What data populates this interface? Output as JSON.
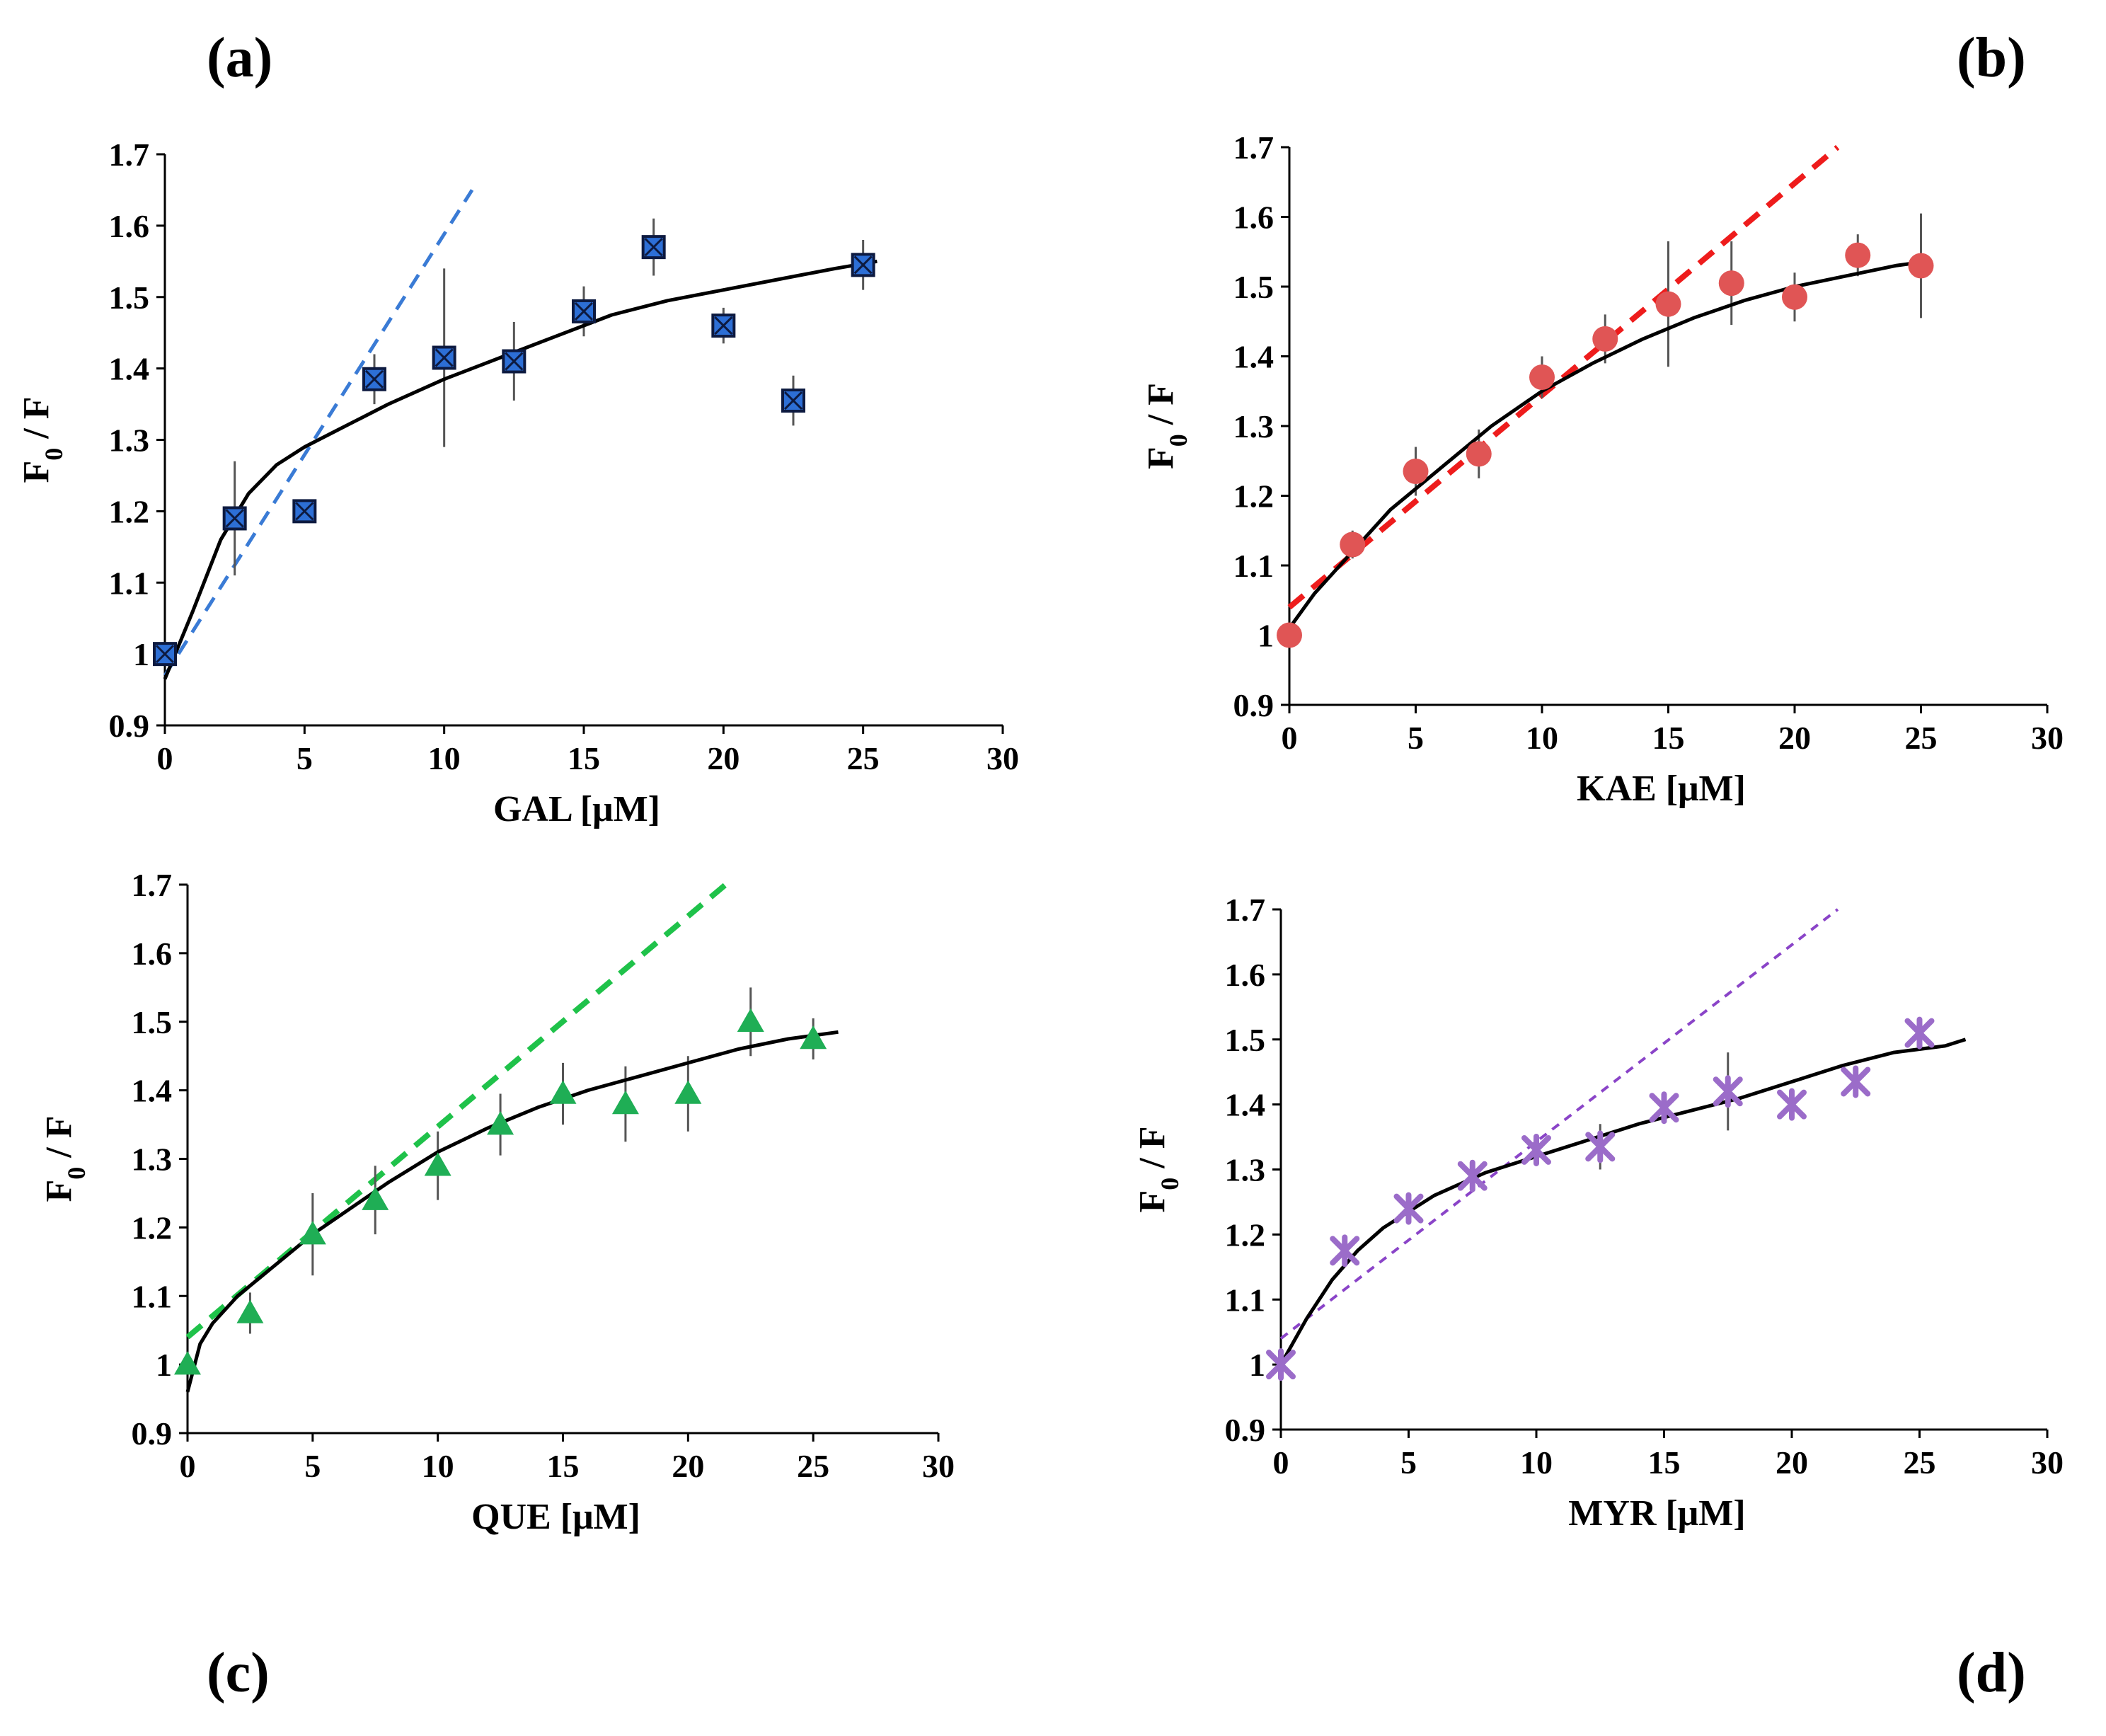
{
  "panels": {
    "a": {
      "label": "(a)"
    },
    "b": {
      "label": "(b)"
    },
    "c": {
      "label": "(c)"
    },
    "d": {
      "label": "(d)"
    }
  },
  "colors": {
    "fit_curve": "#000000",
    "error_bar": "#555555",
    "gal": "#1f4e9c",
    "gal_line": "#3a7bd5",
    "kae": "#e05555",
    "kae_line": "#ee1c1c",
    "que": "#1fae55",
    "que_line": "#1fc24a",
    "myr": "#9b6cc9",
    "myr_line": "#8a44c8"
  },
  "chart_data": [
    {
      "id": "a",
      "type": "scatter",
      "title": "(a)",
      "xlabel": "GAL [μM]",
      "ylabel": "F0 / F",
      "ylabel_main": "F",
      "ylabel_sub": "0",
      "ylabel_rest": " / F",
      "xlim": [
        0,
        30
      ],
      "ylim": [
        0.9,
        1.7
      ],
      "xticks": [
        0,
        5,
        10,
        15,
        20,
        25,
        30
      ],
      "yticks": [
        0.9,
        1,
        1.1,
        1.2,
        1.3,
        1.4,
        1.5,
        1.6,
        1.7
      ],
      "marker": "square-x",
      "series": [
        {
          "name": "GAL",
          "x": [
            0,
            2.5,
            5,
            7.5,
            10,
            12.5,
            15,
            17.5,
            20,
            22.5,
            25
          ],
          "y": [
            1.0,
            1.19,
            1.2,
            1.385,
            1.415,
            1.41,
            1.48,
            1.57,
            1.46,
            1.355,
            1.545
          ],
          "err": [
            0.0,
            0.08,
            0.0,
            0.035,
            0.125,
            0.055,
            0.035,
            0.04,
            0.025,
            0.035,
            0.035
          ]
        }
      ],
      "fit_curve": {
        "x": [
          0,
          1,
          2,
          3,
          4,
          5,
          6,
          8,
          10,
          12,
          14,
          16,
          18,
          20,
          22,
          24,
          25.5
        ],
        "y": [
          0.965,
          1.06,
          1.16,
          1.225,
          1.265,
          1.29,
          1.31,
          1.35,
          1.385,
          1.415,
          1.445,
          1.475,
          1.495,
          1.51,
          1.525,
          1.54,
          1.55
        ]
      },
      "linear_fit": {
        "x": [
          0,
          11
        ],
        "y": [
          0.97,
          1.65
        ]
      }
    },
    {
      "id": "b",
      "type": "scatter",
      "title": "(b)",
      "xlabel": "KAE [μM]",
      "ylabel": "F0 / F",
      "ylabel_main": "F",
      "ylabel_sub": "0",
      "ylabel_rest": " / F",
      "xlim": [
        0,
        30
      ],
      "ylim": [
        0.9,
        1.7
      ],
      "xticks": [
        0,
        5,
        10,
        15,
        20,
        25,
        30
      ],
      "yticks": [
        0.9,
        1,
        1.1,
        1.2,
        1.3,
        1.4,
        1.5,
        1.6,
        1.7
      ],
      "marker": "circle",
      "series": [
        {
          "name": "KAE",
          "x": [
            0,
            2.5,
            5,
            7.5,
            10,
            12.5,
            15,
            17.5,
            20,
            22.5,
            25
          ],
          "y": [
            1.0,
            1.13,
            1.235,
            1.26,
            1.37,
            1.425,
            1.475,
            1.505,
            1.485,
            1.545,
            1.53
          ],
          "err": [
            0.0,
            0.02,
            0.035,
            0.035,
            0.03,
            0.035,
            0.09,
            0.06,
            0.035,
            0.03,
            0.075
          ]
        }
      ],
      "fit_curve": {
        "x": [
          0,
          1,
          2,
          3,
          4,
          5,
          6,
          8,
          10,
          12,
          14,
          16,
          18,
          20,
          22,
          24,
          25
        ],
        "y": [
          1.01,
          1.06,
          1.1,
          1.14,
          1.18,
          1.21,
          1.24,
          1.3,
          1.35,
          1.39,
          1.425,
          1.455,
          1.48,
          1.5,
          1.515,
          1.53,
          1.535
        ]
      },
      "linear_fit": {
        "x": [
          0,
          21.7
        ],
        "y": [
          1.04,
          1.7
        ]
      }
    },
    {
      "id": "c",
      "type": "scatter",
      "title": "(c)",
      "xlabel": "QUE [μM]",
      "ylabel": "F0 / F",
      "ylabel_main": "F",
      "ylabel_sub": "0",
      "ylabel_rest": " / F",
      "xlim": [
        0,
        30
      ],
      "ylim": [
        0.9,
        1.7
      ],
      "xticks": [
        0,
        5,
        10,
        15,
        20,
        25,
        30
      ],
      "yticks": [
        0.9,
        1,
        1.1,
        1.2,
        1.3,
        1.4,
        1.5,
        1.6,
        1.7
      ],
      "marker": "triangle",
      "series": [
        {
          "name": "QUE",
          "x": [
            0,
            2.5,
            5,
            7.5,
            10,
            12.5,
            15,
            17.5,
            20,
            22.5,
            25
          ],
          "y": [
            1.0,
            1.075,
            1.19,
            1.24,
            1.29,
            1.35,
            1.395,
            1.38,
            1.395,
            1.5,
            1.475
          ],
          "err": [
            0.0,
            0.03,
            0.06,
            0.05,
            0.05,
            0.045,
            0.045,
            0.055,
            0.055,
            0.05,
            0.03
          ]
        }
      ],
      "fit_curve": {
        "x": [
          0,
          0.5,
          1,
          2,
          3,
          4,
          5,
          6,
          8,
          10,
          12,
          14,
          16,
          18,
          20,
          22,
          24,
          26
        ],
        "y": [
          0.96,
          1.03,
          1.06,
          1.1,
          1.13,
          1.16,
          1.19,
          1.215,
          1.265,
          1.31,
          1.345,
          1.375,
          1.4,
          1.42,
          1.44,
          1.46,
          1.475,
          1.485
        ]
      },
      "linear_fit": {
        "x": [
          0,
          21.5
        ],
        "y": [
          1.04,
          1.7
        ]
      }
    },
    {
      "id": "d",
      "type": "scatter",
      "title": "(d)",
      "xlabel": "MYR [μM]",
      "ylabel": "F0 / F",
      "ylabel_main": "F",
      "ylabel_sub": "0",
      "ylabel_rest": " / F",
      "xlim": [
        0,
        30
      ],
      "ylim": [
        0.9,
        1.7
      ],
      "xticks": [
        0,
        5,
        10,
        15,
        20,
        25,
        30
      ],
      "yticks": [
        0.9,
        1,
        1.1,
        1.2,
        1.3,
        1.4,
        1.5,
        1.6,
        1.7
      ],
      "marker": "asterisk",
      "series": [
        {
          "name": "MYR",
          "x": [
            0,
            2.5,
            5,
            7.5,
            10,
            12.5,
            15,
            17.5,
            20,
            22.5,
            25
          ],
          "y": [
            1.0,
            1.175,
            1.24,
            1.29,
            1.33,
            1.335,
            1.395,
            1.42,
            1.4,
            1.435,
            1.51
          ],
          "err": [
            0.0,
            0.0,
            0.02,
            0.0,
            0.0,
            0.035,
            0.0,
            0.06,
            0.0,
            0.0,
            0.0
          ]
        }
      ],
      "fit_curve": {
        "x": [
          0,
          1,
          2,
          3,
          4,
          5,
          6,
          8,
          10,
          12,
          14,
          16,
          18,
          20,
          22,
          24,
          26,
          26.8
        ],
        "y": [
          1.0,
          1.07,
          1.13,
          1.175,
          1.21,
          1.235,
          1.26,
          1.295,
          1.32,
          1.345,
          1.37,
          1.39,
          1.41,
          1.435,
          1.46,
          1.48,
          1.49,
          1.5
        ]
      },
      "linear_fit": {
        "x": [
          0,
          21.8
        ],
        "y": [
          1.04,
          1.7
        ]
      }
    }
  ]
}
